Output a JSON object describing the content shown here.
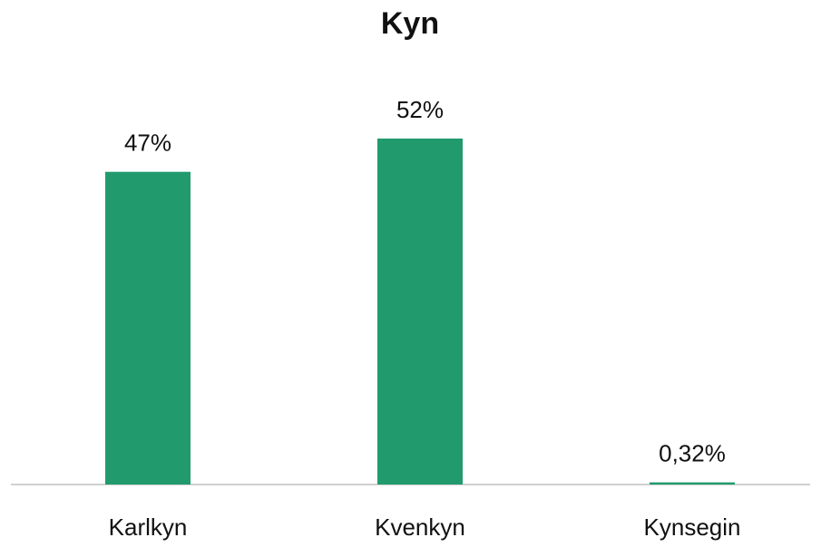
{
  "chart_data": {
    "type": "bar",
    "title": "Kyn",
    "categories": [
      "Karlkyn",
      "Kvenkyn",
      "Kynsegin"
    ],
    "values": [
      47,
      52,
      0.32
    ],
    "value_labels": [
      "47%",
      "52%",
      "0,32%"
    ],
    "color": "#219a6e"
  }
}
